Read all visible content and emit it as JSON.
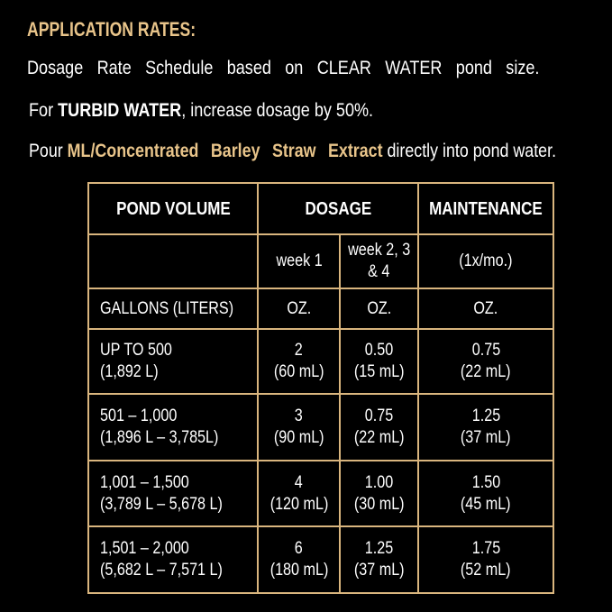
{
  "heading": "APPLICATION RATES:",
  "line1": "Dosage Rate Schedule based on CLEAR WATER pond size.",
  "line2": {
    "prefix": "For ",
    "bold": "TURBID WATER",
    "suffix": ", increase dosage by 50%."
  },
  "line3": {
    "prefix": "Pour ",
    "highlight": "ML/Concentrated Barley Straw Extract",
    "suffix": " directly into pond water."
  },
  "colors": {
    "accent": "#e8c48a",
    "background": "#000000",
    "text": "#ffffff"
  },
  "table": {
    "headers": {
      "volume": "POND VOLUME",
      "dosage": "DOSAGE",
      "maintenance": "MAINTENANCE"
    },
    "subheaders": {
      "week1": "week 1",
      "week234_a": "week 2, 3",
      "week234_b": "& 4",
      "maintenance": "(1x/mo.)"
    },
    "units": {
      "volume": "GALLONS (LITERS)",
      "week1": "OZ.",
      "week234": "OZ.",
      "maintenance": "OZ."
    },
    "rows": [
      {
        "gal": "UP TO 500",
        "lit": "(1,892 L)",
        "w1": "2",
        "w1ml": "(60 mL)",
        "w2": "0.50",
        "w2ml": "(15 mL)",
        "m": "0.75",
        "mml": "(22 mL)"
      },
      {
        "gal": "501 – 1,000",
        "lit": "(1,896 L – 3,785L)",
        "w1": "3",
        "w1ml": "(90 mL)",
        "w2": "0.75",
        "w2ml": "(22 mL)",
        "m": "1.25",
        "mml": "(37 mL)"
      },
      {
        "gal": "1,001 – 1,500",
        "lit": "(3,789 L – 5,678 L)",
        "w1": "4",
        "w1ml": "(120 mL)",
        "w2": "1.00",
        "w2ml": "(30 mL)",
        "m": "1.50",
        "mml": "(45 mL)"
      },
      {
        "gal": "1,501 – 2,000",
        "lit": "(5,682 L – 7,571 L)",
        "w1": "6",
        "w1ml": "(180 mL)",
        "w2": "1.25",
        "w2ml": "(37 mL)",
        "m": "1.75",
        "mml": "(52 mL)"
      }
    ]
  }
}
